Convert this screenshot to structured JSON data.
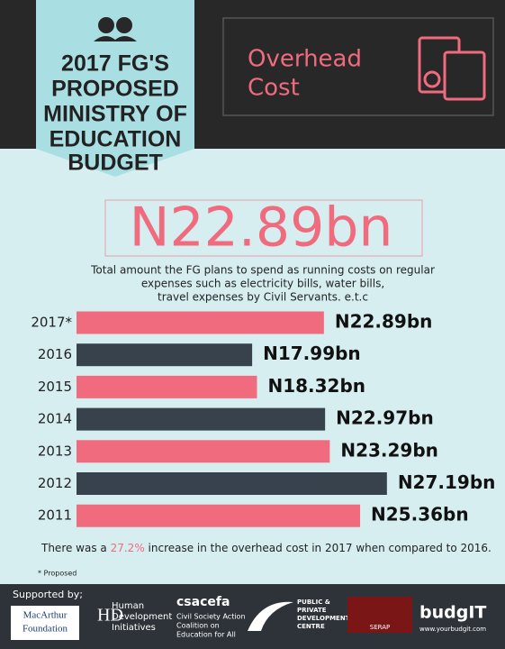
{
  "header": {
    "title_lines": [
      "2017 FG'S",
      "PROPOSED",
      "MINISTRY OF",
      "EDUCATION",
      "BUDGET"
    ],
    "topic_lines": [
      "Overhead",
      "Cost"
    ]
  },
  "headline": "N22.89bn",
  "description_lines": [
    "Total amount the FG plans to spend as running costs on regular",
    "expenses such as electricity bills, water bills,",
    "travel expenses by Civil Servants. e.t.c"
  ],
  "chart_data": {
    "type": "bar",
    "orientation": "horizontal",
    "categories": [
      "2017*",
      "2016",
      "2015",
      "2014",
      "2013",
      "2012",
      "2011"
    ],
    "values": [
      22.89,
      17.99,
      18.32,
      22.97,
      23.29,
      27.19,
      25.36
    ],
    "value_labels": [
      "N22.89bn",
      "N17.99bn",
      "N18.32bn",
      "N22.97bn",
      "N23.29bn",
      "N27.19bn",
      "N25.36bn"
    ],
    "colors": [
      "#f06b7e",
      "#37424c",
      "#f06b7e",
      "#37424c",
      "#f06b7e",
      "#37424c",
      "#f06b7e"
    ],
    "xlim": [
      6,
      28
    ]
  },
  "statement": {
    "before": "There was a ",
    "highlight": "27.2%",
    "after": " increase in the overhead cost in 2017 when compared to 2016."
  },
  "footnote": "* Proposed",
  "footer": {
    "supported_by": "Supported by;",
    "macarthur": [
      "MacArthur",
      "Foundation"
    ],
    "hdi": [
      "Human",
      "Development",
      "Initiatives"
    ],
    "csacefa": "csacefa",
    "csacefa_lines": [
      "Civil Society Action",
      "Coalition on",
      "Education for All"
    ],
    "ppdc": [
      "PUBLIC &",
      "PRIVATE",
      "DEVELOPMENT",
      "CENTRE"
    ],
    "serap": "SERAP",
    "budgit": "budgIT",
    "url": "www.yourbudgit.com"
  }
}
